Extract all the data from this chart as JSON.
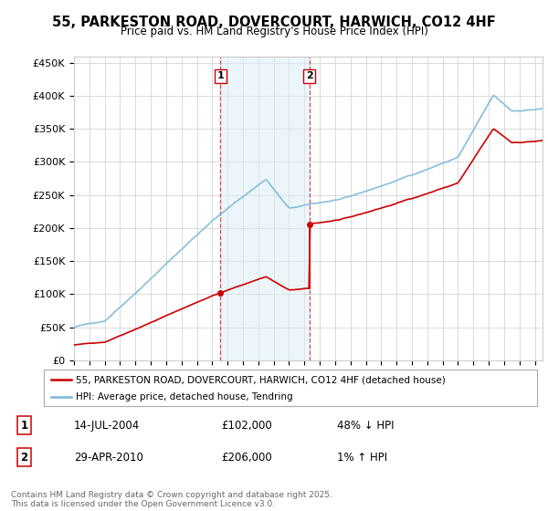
{
  "title": "55, PARKESTON ROAD, DOVERCOURT, HARWICH, CO12 4HF",
  "subtitle": "Price paid vs. HM Land Registry's House Price Index (HPI)",
  "ylabel_ticks": [
    "£0",
    "£50K",
    "£100K",
    "£150K",
    "£200K",
    "£250K",
    "£300K",
    "£350K",
    "£400K",
    "£450K"
  ],
  "ytick_values": [
    0,
    50000,
    100000,
    150000,
    200000,
    250000,
    300000,
    350000,
    400000,
    450000
  ],
  "ylim": [
    0,
    460000
  ],
  "xlim_start": 1995.0,
  "xlim_end": 2025.5,
  "sale1_date": 2004.54,
  "sale1_price": 102000,
  "sale2_date": 2010.33,
  "sale2_price": 206000,
  "hpi_color": "#7ab8d9",
  "property_color": "#cc0000",
  "vline_color": "#cc0000",
  "shade_color": "#daeef7",
  "shade_alpha": 0.5,
  "legend_label_property": "55, PARKESTON ROAD, DOVERCOURT, HARWICH, CO12 4HF (detached house)",
  "legend_label_hpi": "HPI: Average price, detached house, Tendring",
  "annotation1_date": "14-JUL-2004",
  "annotation1_price": "£102,000",
  "annotation1_hpi": "48% ↓ HPI",
  "annotation2_date": "29-APR-2010",
  "annotation2_price": "£206,000",
  "annotation2_hpi": "1% ↑ HPI",
  "footer": "Contains HM Land Registry data © Crown copyright and database right 2025.\nThis data is licensed under the Open Government Licence v3.0.",
  "background_color": "#ffffff",
  "grid_color": "#cccccc"
}
